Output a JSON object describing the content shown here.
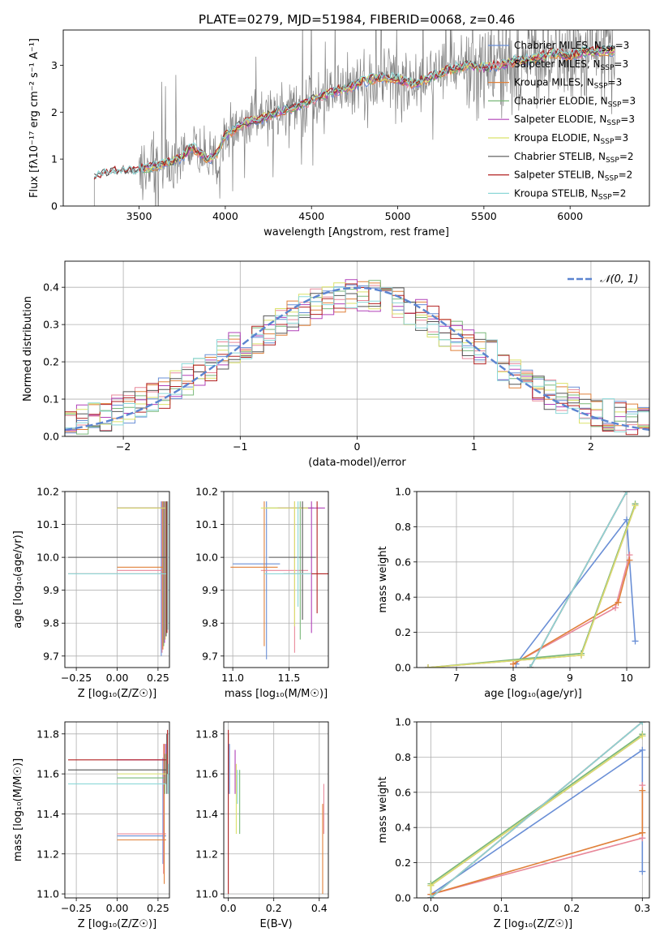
{
  "title": "PLATE=0279, MJD=51984, FIBERID=0068, z=0.46",
  "colors": {
    "Chabrier MILES": "#6a8fd6",
    "Salpeter MILES": "#e8889a",
    "Kroupa MILES": "#e0803a",
    "Chabrier ELODIE": "#79b879",
    "Salpeter ELODIE": "#b140b8",
    "Kroupa ELODIE": "#dbe26a",
    "Chabrier STELIB": "#555555",
    "Salpeter STELIB": "#b22222",
    "Kroupa STELIB": "#8cd8d8"
  },
  "chart_data": [
    {
      "id": "spectrum",
      "type": "line",
      "xlabel": "wavelength [Angstrom, rest frame]",
      "xlim": [
        3060,
        6460
      ],
      "ylim": [
        0,
        3.75
      ],
      "xticks": [
        3500,
        4000,
        4500,
        5000,
        5500,
        6000
      ],
      "yticks": [
        0,
        1,
        2,
        3
      ],
      "grid": false,
      "legend": [
        {
          "name": "Chabrier MILES",
          "n": "3"
        },
        {
          "name": "Salpeter MILES",
          "n": "3"
        },
        {
          "name": "Kroupa MILES",
          "n": "3"
        },
        {
          "name": "Chabrier ELODIE",
          "n": "3"
        },
        {
          "name": "Salpeter ELODIE",
          "n": "3"
        },
        {
          "name": "Kroupa ELODIE",
          "n": "3"
        },
        {
          "name": "Chabrier STELIB",
          "n": "2"
        },
        {
          "name": "Salpeter STELIB",
          "n": "2"
        },
        {
          "name": "Kroupa STELIB",
          "n": "2"
        }
      ],
      "legend_placement": "top-right",
      "data_color": "#808080",
      "model_x": [
        3240,
        3300,
        3400,
        3480,
        3520,
        3600,
        3700,
        3750,
        3800,
        3850,
        3900,
        3950,
        4000,
        4100,
        4200,
        4300,
        4400,
        4500,
        4600,
        4700,
        4800,
        4900,
        5000,
        5100,
        5200,
        5300,
        5400,
        5500,
        5600,
        5700,
        5800,
        5900,
        6000,
        6100,
        6200
      ],
      "model_y": [
        0.6,
        0.7,
        0.75,
        0.72,
        0.8,
        0.85,
        0.95,
        1.05,
        1.25,
        1.15,
        1.0,
        1.1,
        1.5,
        1.75,
        1.85,
        2.0,
        2.1,
        2.25,
        2.4,
        2.5,
        2.65,
        2.75,
        2.7,
        2.6,
        2.75,
        2.9,
        3.0,
        2.95,
        3.0,
        3.1,
        3.15,
        3.25,
        3.2,
        3.3,
        3.3
      ]
    },
    {
      "id": "residual-histogram",
      "type": "line",
      "xlabel": "(data-model)/error",
      "ylabel": "Normed distribution",
      "xlim": [
        -2.5,
        2.5
      ],
      "ylim": [
        0,
        0.47
      ],
      "xticks": [
        -2,
        -1,
        0,
        1,
        2
      ],
      "yticks": [
        0.0,
        0.1,
        0.2,
        0.3,
        0.4
      ],
      "grid": true,
      "legend": [
        {
          "name": "𝒩(0, 1)"
        }
      ],
      "legend_placement": "top-right",
      "bin_width": 0.1
    },
    {
      "id": "age-vs-Z",
      "type": "scatter",
      "xlabel": "Z [log₁₀(Z/Z☉)]",
      "ylabel": "age  [log₁₀(age/yr)]",
      "xlim": [
        -0.32,
        0.32
      ],
      "ylim": [
        9.665,
        10.2
      ],
      "xticks": [
        -0.25,
        0.0,
        0.25
      ],
      "yticks": [
        9.7,
        9.8,
        9.9,
        10.0,
        10.1,
        10.2
      ],
      "grid": true
    },
    {
      "id": "age-vs-mass",
      "type": "scatter",
      "xlabel": "mass [log₁₀(M/M☉)]",
      "xlim": [
        10.92,
        11.85
      ],
      "ylim": [
        9.665,
        10.2
      ],
      "xticks": [
        11.0,
        11.5
      ],
      "yticks": [
        9.7,
        9.8,
        9.9,
        10.0,
        10.1,
        10.2
      ],
      "grid": true
    },
    {
      "id": "massweight-vs-age",
      "type": "line",
      "xlabel": "age  [log₁₀(age/yr)]",
      "ylabel": "mass weight",
      "xlim": [
        6.3,
        10.4
      ],
      "ylim": [
        0,
        1
      ],
      "xticks": [
        7,
        8,
        9,
        10
      ],
      "yticks": [
        0.0,
        0.2,
        0.4,
        0.6,
        0.8,
        1.0
      ],
      "grid": true,
      "series": [
        {
          "name": "Chabrier MILES",
          "x": [
            8.05,
            10.0,
            10.15
          ],
          "y": [
            0.02,
            0.84,
            0.15
          ]
        },
        {
          "name": "Salpeter MILES",
          "x": [
            8.0,
            9.8,
            10.05
          ],
          "y": [
            0.02,
            0.34,
            0.64
          ]
        },
        {
          "name": "Kroupa MILES",
          "x": [
            8.0,
            9.85,
            10.05
          ],
          "y": [
            0.02,
            0.37,
            0.61
          ]
        },
        {
          "name": "Chabrier ELODIE",
          "x": [
            6.5,
            9.2,
            10.15
          ],
          "y": [
            0.0,
            0.08,
            0.93
          ]
        },
        {
          "name": "Salpeter ELODIE",
          "x": [
            6.5,
            9.2,
            10.15
          ],
          "y": [
            0.0,
            0.07,
            0.92
          ]
        },
        {
          "name": "Kroupa ELODIE",
          "x": [
            6.5,
            9.2,
            10.15
          ],
          "y": [
            0.0,
            0.07,
            0.92
          ]
        },
        {
          "name": "Chabrier STELIB",
          "x": [
            8.3,
            10.0
          ],
          "y": [
            0.0,
            1.0
          ]
        },
        {
          "name": "Salpeter STELIB",
          "x": [
            8.3,
            10.0
          ],
          "y": [
            0.0,
            1.0
          ]
        },
        {
          "name": "Kroupa STELIB",
          "x": [
            8.3,
            10.0
          ],
          "y": [
            0.0,
            1.0
          ]
        }
      ]
    },
    {
      "id": "mass-vs-Z",
      "type": "scatter",
      "xlabel": "Z [log₁₀(Z/Z☉)]",
      "ylabel": "mass [log₁₀(M/M☉)]",
      "xlim": [
        -0.32,
        0.32
      ],
      "ylim": [
        10.98,
        11.86
      ],
      "xticks": [
        -0.25,
        0.0,
        0.25
      ],
      "yticks": [
        11.0,
        11.2,
        11.4,
        11.6,
        11.8
      ],
      "grid": true
    },
    {
      "id": "mass-vs-EBV",
      "type": "scatter",
      "xlabel": "E(B-V)",
      "xlim": [
        -0.02,
        0.44
      ],
      "ylim": [
        10.98,
        11.86
      ],
      "xticks": [
        0.0,
        0.2,
        0.4
      ],
      "yticks": [
        11.0,
        11.2,
        11.4,
        11.6,
        11.8
      ],
      "grid": true
    },
    {
      "id": "massweight-vs-Z",
      "type": "line",
      "xlabel": "Z [log₁₀(Z/Z☉)]",
      "ylabel": "mass weight",
      "xlim": [
        -0.02,
        0.31
      ],
      "ylim": [
        0,
        1
      ],
      "xticks": [
        0.0,
        0.1,
        0.2,
        0.3
      ],
      "yticks": [
        0.0,
        0.2,
        0.4,
        0.6,
        0.8,
        1.0
      ],
      "grid": true,
      "series": [
        {
          "name": "Chabrier MILES",
          "x": [
            0.0,
            0.3,
            0.3
          ],
          "y": [
            0.02,
            0.84,
            0.15
          ]
        },
        {
          "name": "Salpeter MILES",
          "x": [
            0.0,
            0.3,
            0.3
          ],
          "y": [
            0.02,
            0.34,
            0.64
          ]
        },
        {
          "name": "Kroupa MILES",
          "x": [
            0.0,
            0.3,
            0.3
          ],
          "y": [
            0.02,
            0.37,
            0.61
          ]
        },
        {
          "name": "Chabrier ELODIE",
          "x": [
            0.0,
            0.0,
            0.3
          ],
          "y": [
            0.0,
            0.08,
            0.93
          ]
        },
        {
          "name": "Salpeter ELODIE",
          "x": [
            0.0,
            0.0,
            0.3
          ],
          "y": [
            0.0,
            0.07,
            0.92
          ]
        },
        {
          "name": "Kroupa ELODIE",
          "x": [
            0.0,
            0.0,
            0.3
          ],
          "y": [
            0.0,
            0.07,
            0.92
          ]
        },
        {
          "name": "Chabrier STELIB",
          "x": [
            0.0,
            0.3
          ],
          "y": [
            0.0,
            1.0
          ]
        },
        {
          "name": "Salpeter STELIB",
          "x": [
            0.0,
            0.3
          ],
          "y": [
            0.0,
            1.0
          ]
        },
        {
          "name": "Kroupa STELIB",
          "x": [
            0.0,
            0.3
          ],
          "y": [
            0.0,
            1.0
          ]
        }
      ]
    }
  ]
}
